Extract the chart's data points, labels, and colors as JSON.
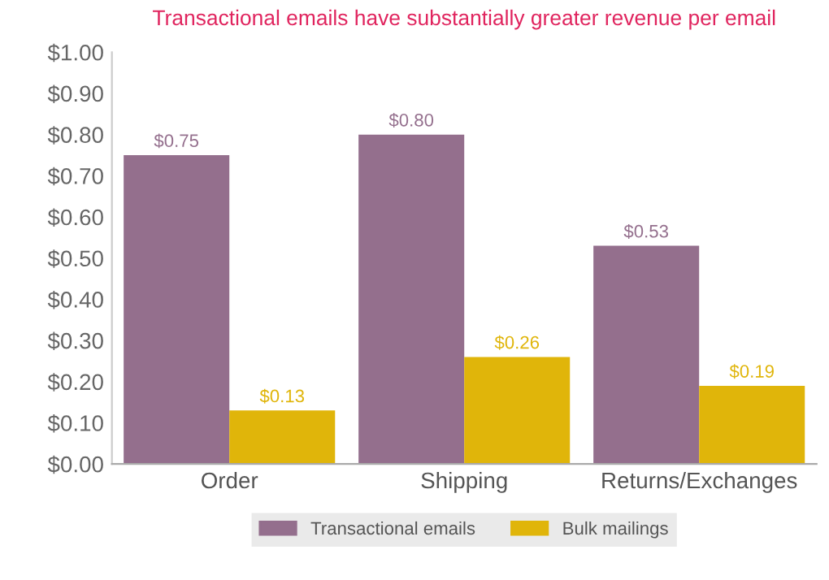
{
  "chart_data": {
    "type": "bar",
    "title": "Transactional emails have substantially greater revenue per email",
    "categories": [
      "Order",
      "Shipping",
      "Returns/Exchanges"
    ],
    "series": [
      {
        "name": "Transactional emails",
        "color": "#946f8d",
        "values": [
          0.75,
          0.8,
          0.53
        ],
        "value_labels": [
          "$0.75",
          "$0.80",
          "$0.53"
        ]
      },
      {
        "name": "Bulk mailings",
        "color": "#e0b50a",
        "values": [
          0.13,
          0.26,
          0.19
        ],
        "value_labels": [
          "$0.13",
          "$0.26",
          "$0.19"
        ]
      }
    ],
    "ylim": [
      0,
      1
    ],
    "yticks": [
      {
        "value": 0,
        "label": "$0.00"
      },
      {
        "value": 0.1,
        "label": "$0.10"
      },
      {
        "value": 0.2,
        "label": "$0.20"
      },
      {
        "value": 0.3,
        "label": "$0.30"
      },
      {
        "value": 0.4,
        "label": "$0.40"
      },
      {
        "value": 0.5,
        "label": "$0.50"
      },
      {
        "value": 0.6,
        "label": "$0.60"
      },
      {
        "value": 0.7,
        "label": "$0.70"
      },
      {
        "value": 0.8,
        "label": "$0.80"
      },
      {
        "value": 0.9,
        "label": "$0.90"
      },
      {
        "value": 1,
        "label": "$1.00"
      }
    ],
    "grid": false,
    "legend": "bottom"
  }
}
